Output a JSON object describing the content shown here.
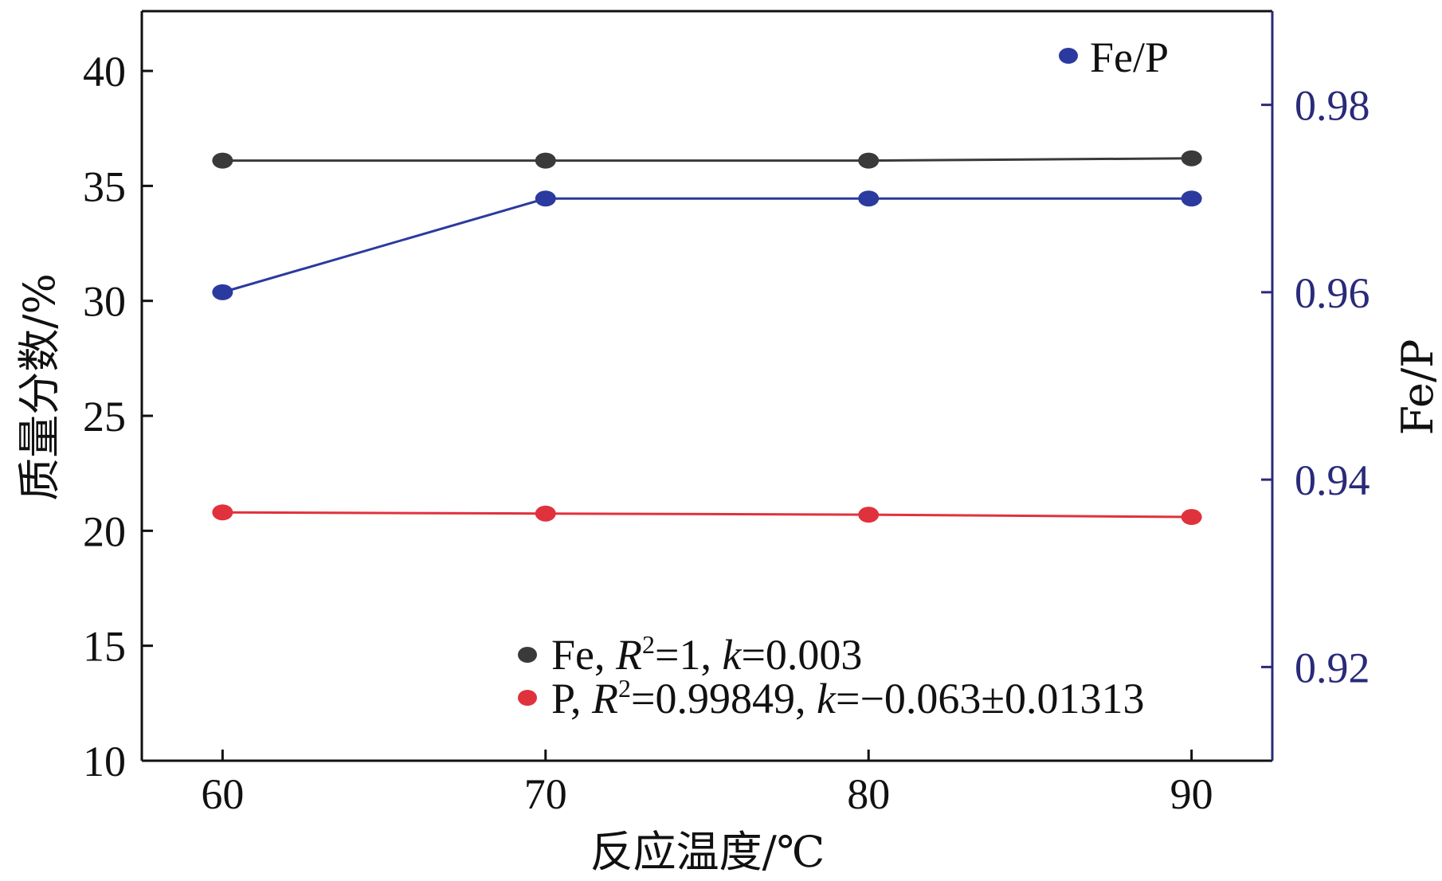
{
  "chart_data": {
    "type": "line",
    "x": [
      60,
      70,
      80,
      90
    ],
    "xlabel": "反应温度/℃",
    "ylabel_left": "质量分数/%",
    "ylabel_right": "Fe/P",
    "xlim": [
      57.5,
      92.5
    ],
    "ylim_left": [
      10,
      42.6
    ],
    "ylim_right": [
      0.91,
      0.99
    ],
    "xticks": [
      60,
      70,
      80,
      90
    ],
    "yticks_left": [
      10,
      15,
      20,
      25,
      30,
      35,
      40
    ],
    "yticks_right": [
      "0.92",
      "0.94",
      "0.96",
      "0.98"
    ],
    "series": [
      {
        "name": "Fe",
        "axis": "left",
        "values": [
          36.1,
          36.1,
          36.1,
          36.2
        ],
        "color": "#3a3a3a"
      },
      {
        "name": "P",
        "axis": "left",
        "values": [
          20.8,
          20.75,
          20.7,
          20.6
        ],
        "color": "#e0323c"
      },
      {
        "name": "Fe/P",
        "axis": "right",
        "values": [
          0.96,
          0.97,
          0.97,
          0.97
        ],
        "color": "#2b3a9e"
      }
    ],
    "legend_top_right": {
      "label": "Fe/P"
    },
    "legend_bottom": [
      {
        "prefix": "Fe, ",
        "r": "R",
        "sup": "2",
        "rest1": "=1, ",
        "k": "k",
        "rest2": "=0.003"
      },
      {
        "prefix": "P, ",
        "r": "R",
        "sup": "2",
        "rest1": "=0.99849, ",
        "k": "k",
        "rest2": "=−0.063±0.01313"
      }
    ],
    "grid": false,
    "colors": {
      "axis": "#111111",
      "right_axis": "#2a2a7a"
    }
  }
}
